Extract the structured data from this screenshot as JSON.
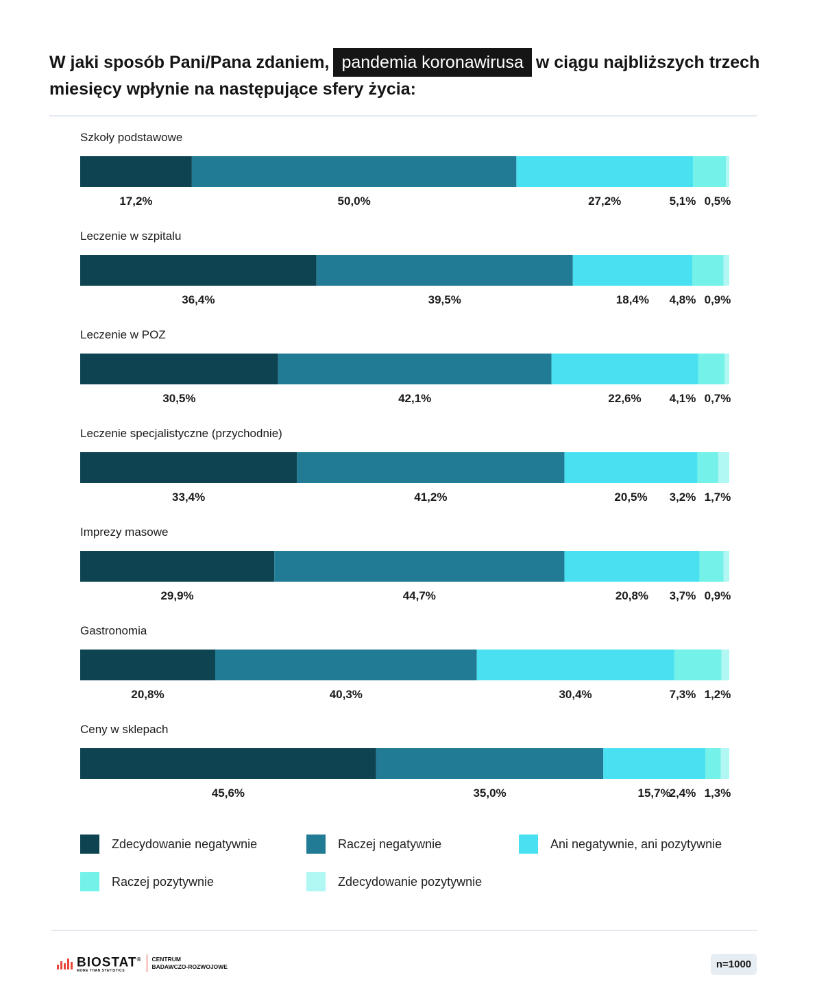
{
  "title": {
    "part1": "W jaki sposób Pani/Pana zdaniem,",
    "highlight": "pandemia koronawirusa",
    "part2": "w ciągu najbliższych trzech miesięcy wpłynie na następujące sfery życia:"
  },
  "chart_data": {
    "type": "bar",
    "orientation": "horizontal-stacked-100",
    "categories": [
      "Szkoły podstawowe",
      "Leczenie w szpitalu",
      "Leczenie w POZ",
      "Leczenie specjalistyczne (przychodnie)",
      "Imprezy masowe",
      "Gastronomia",
      "Ceny w sklepach"
    ],
    "series": [
      {
        "name": "Zdecydowanie negatywnie",
        "color": "#0e4452",
        "values": [
          17.2,
          36.4,
          30.5,
          33.4,
          29.9,
          20.8,
          45.6
        ]
      },
      {
        "name": "Raczej negatywnie",
        "color": "#227b94",
        "values": [
          50.0,
          39.5,
          42.1,
          41.2,
          44.7,
          40.3,
          35.0
        ]
      },
      {
        "name": "Ani negatywnie, ani pozytywnie",
        "color": "#49e1f2",
        "values": [
          27.2,
          18.4,
          22.6,
          20.5,
          20.8,
          30.4,
          15.7
        ]
      },
      {
        "name": "Raczej pozytywnie",
        "color": "#74f1e8",
        "values": [
          5.1,
          4.8,
          4.1,
          3.2,
          3.7,
          7.3,
          2.4
        ]
      },
      {
        "name": "Zdecydowanie pozytywnie",
        "color": "#b1f7f3",
        "values": [
          0.5,
          0.9,
          0.7,
          1.7,
          0.9,
          1.2,
          1.3
        ]
      }
    ],
    "value_labels": [
      [
        "17,2%",
        "50,0%",
        "27,2%",
        "5,1%",
        "0,5%"
      ],
      [
        "36,4%",
        "39,5%",
        "18,4%",
        "4,8%",
        "0,9%"
      ],
      [
        "30,5%",
        "42,1%",
        "22,6%",
        "4,1%",
        "0,7%"
      ],
      [
        "33,4%",
        "41,2%",
        "20,5%",
        "3,2%",
        "1,7%"
      ],
      [
        "29,9%",
        "44,7%",
        "20,8%",
        "3,7%",
        "0,9%"
      ],
      [
        "20,8%",
        "40,3%",
        "30,4%",
        "7,3%",
        "1,2%"
      ],
      [
        "45,6%",
        "35,0%",
        "15,7%",
        "2,4%",
        "1,3%"
      ]
    ],
    "legend_position": "bottom",
    "grid": false
  },
  "footer": {
    "brand": "BIOSTAT",
    "registered": "®",
    "tagline": "MORE THAN STATISTICS",
    "centrum_line1": "CENTRUM",
    "centrum_line2": "BADAWCZO-ROZWOJOWE",
    "sample": "n=1000"
  }
}
